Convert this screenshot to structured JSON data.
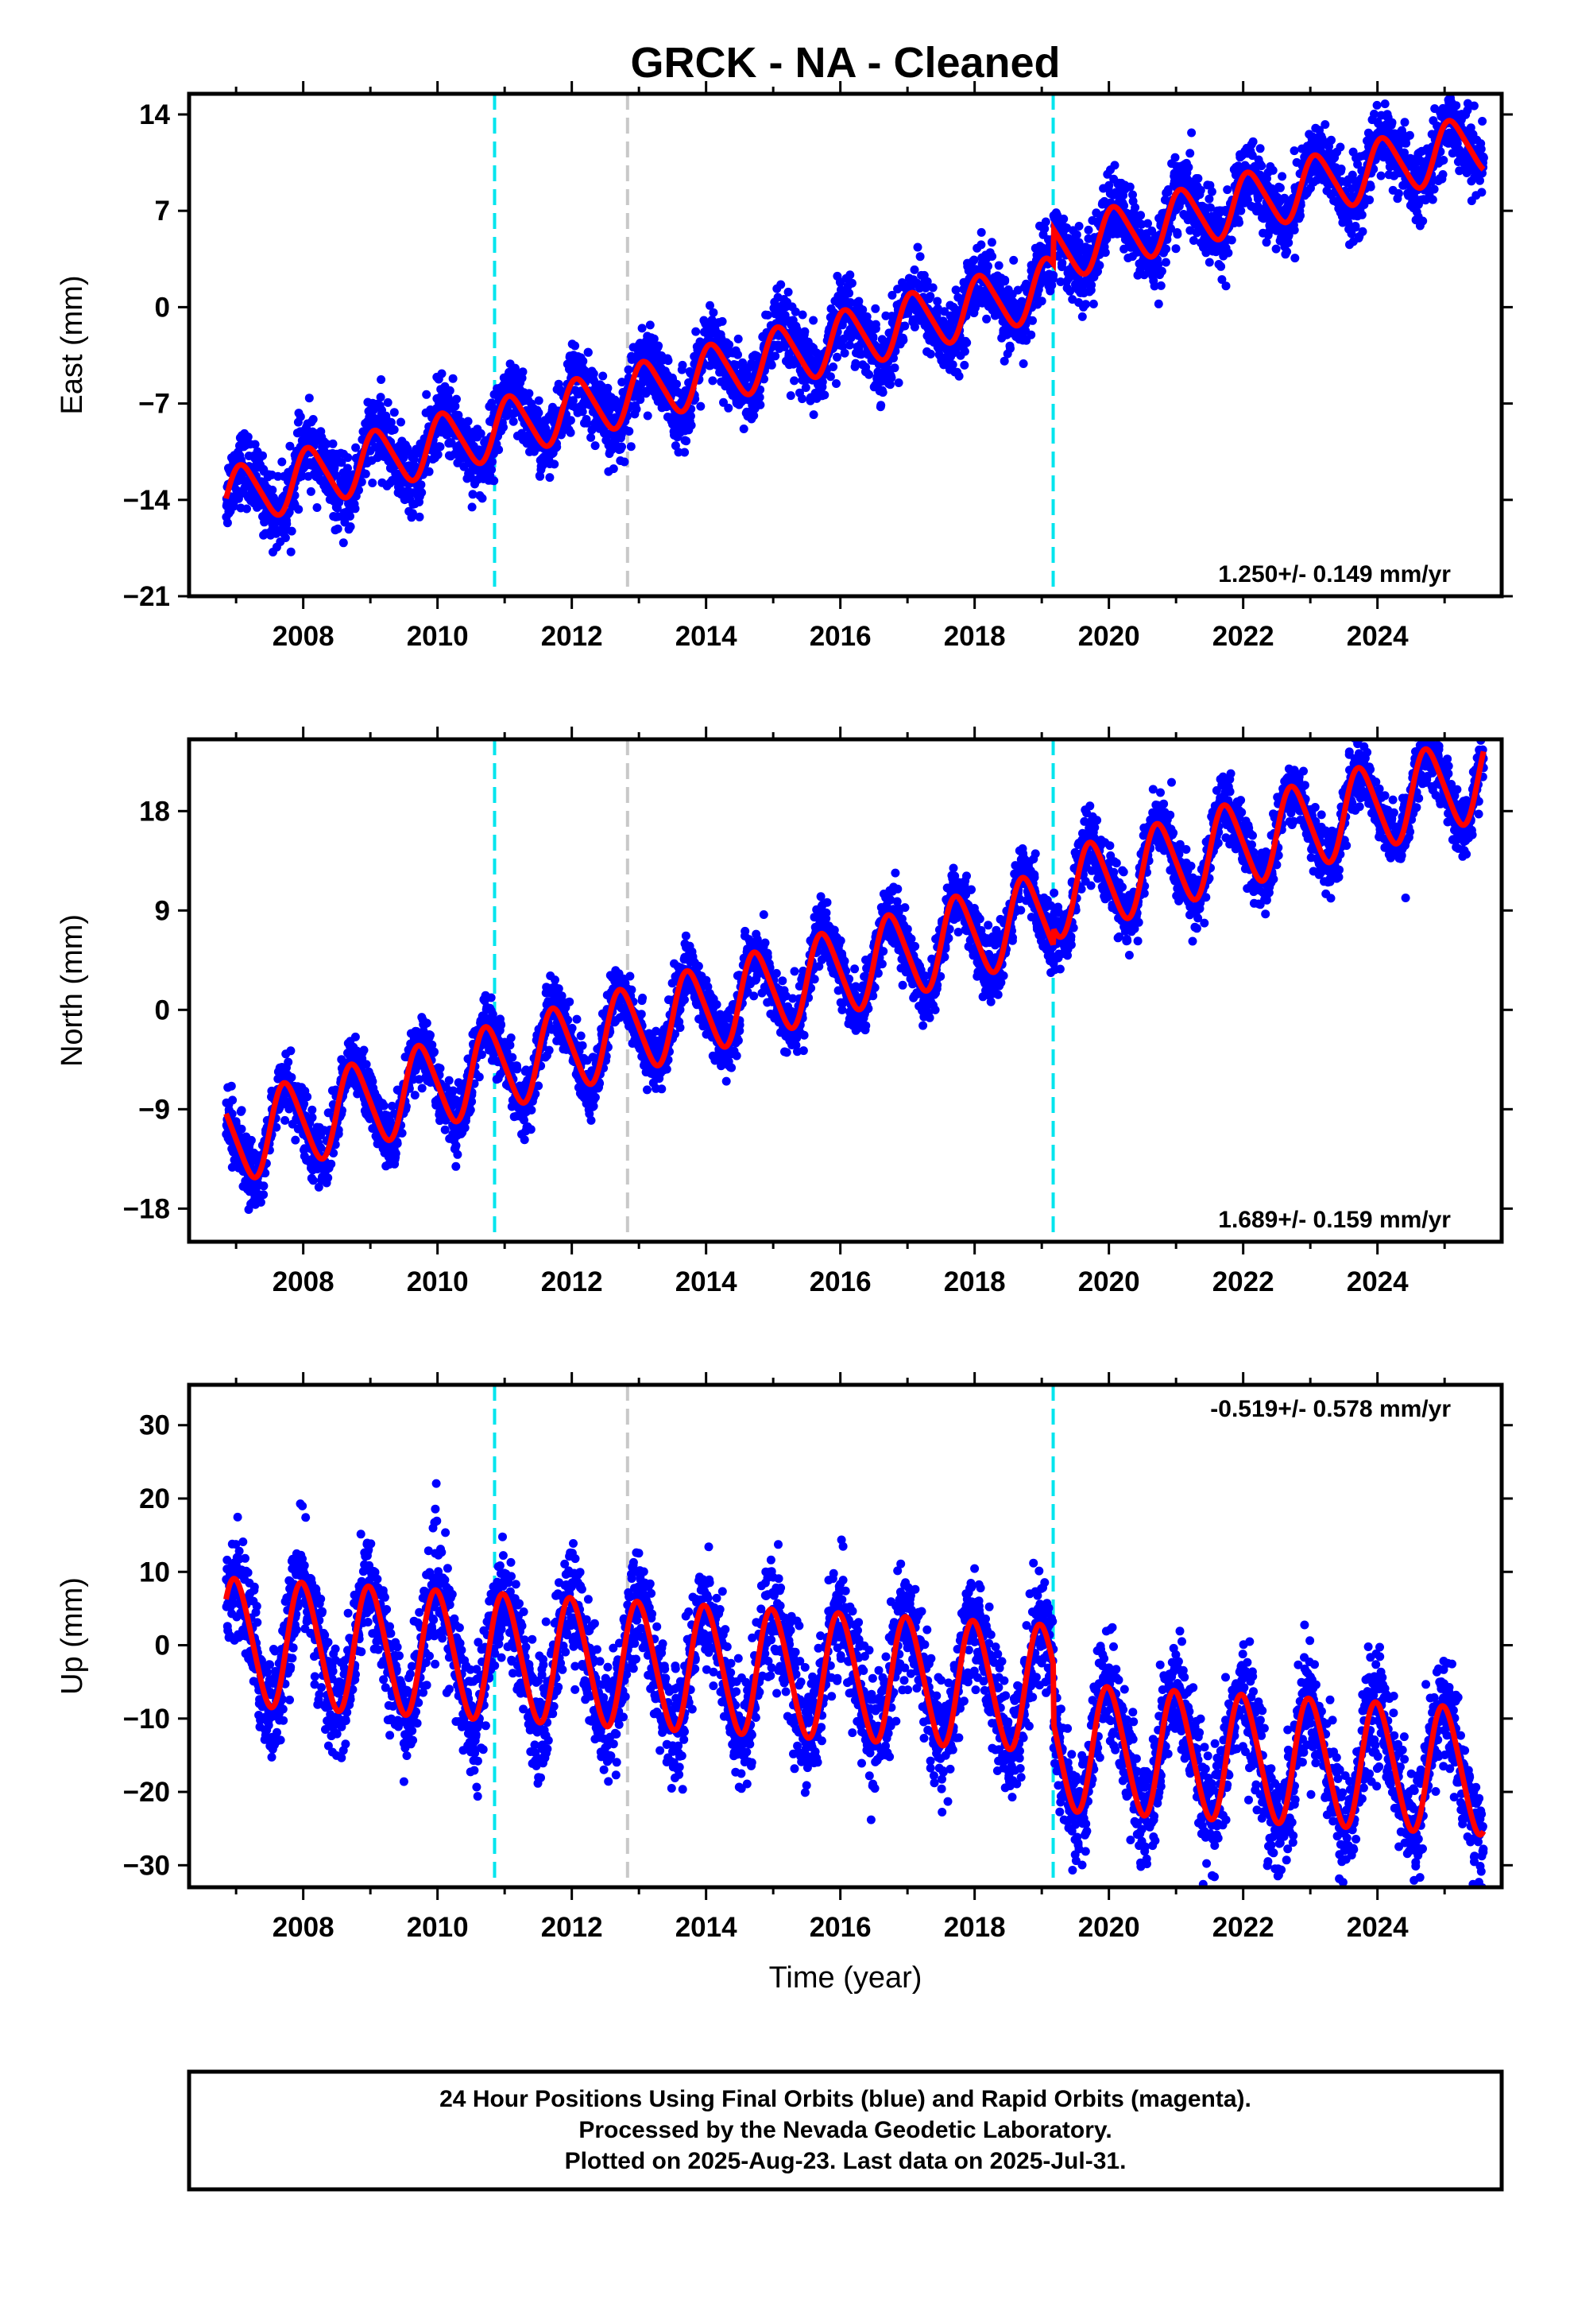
{
  "title": "GRCK  - NA - Cleaned",
  "xlabel": "Time (year)",
  "footer": [
    "24 Hour Positions Using Final Orbits (blue) and Rapid Orbits (magenta).",
    "Processed by the Nevada Geodetic Laboratory.",
    "Plotted on 2025-Aug-23. Last data on 2025-Jul-31."
  ],
  "colors": {
    "points": "#0000ff",
    "model": "#ff0000",
    "equipment_change": "#00e5ee",
    "other_event": "#c8c8c8",
    "frame": "#000000"
  },
  "chart_data": [
    {
      "type": "scatter",
      "ylabel": "East (mm)",
      "xlim": [
        2006.3,
        2025.85
      ],
      "ylim": [
        -21,
        15.5
      ],
      "yticks": [
        14,
        7,
        0,
        -7,
        -14,
        -21
      ],
      "ytick_labels": [
        "14",
        "7",
        "0",
        "−7",
        "−14",
        "−21"
      ],
      "xticks": [
        2008,
        2010,
        2012,
        2014,
        2016,
        2018,
        2020,
        2022,
        2024
      ],
      "xtick_labels": [
        "2008",
        "2010",
        "2012",
        "2014",
        "2016",
        "2018",
        "2020",
        "2022",
        "2024"
      ],
      "rate": "1.250+/- 0.149 mm/yr",
      "rate_position": "bottom-right",
      "events": [
        {
          "x": 2010.85,
          "kind": "equipment_change"
        },
        {
          "x": 2012.83,
          "kind": "other_event"
        },
        {
          "x": 2019.17,
          "kind": "equipment_change"
        }
      ],
      "model": {
        "start": 2006.85,
        "end": 2025.58,
        "offset": -13.9,
        "rate": 1.25,
        "annual_amplitude": 2.1,
        "annual_phase_year": 0.85,
        "semiannual_amplitude": 0.3,
        "steps": [
          {
            "x": 2019.17,
            "size": 2.5
          }
        ]
      },
      "scatter_noise": 1.3
    },
    {
      "type": "scatter",
      "ylabel": "North (mm)",
      "xlim": [
        2006.3,
        2025.85
      ],
      "ylim": [
        -21,
        24.5
      ],
      "yticks": [
        18,
        9,
        0,
        -9,
        -18
      ],
      "ytick_labels": [
        "18",
        "9",
        "0",
        "−9",
        "−18"
      ],
      "xticks": [
        2008,
        2010,
        2012,
        2014,
        2016,
        2018,
        2020,
        2022,
        2024
      ],
      "xtick_labels": [
        "2008",
        "2010",
        "2012",
        "2014",
        "2016",
        "2018",
        "2020",
        "2022",
        "2024"
      ],
      "rate": "1.689+/- 0.159 mm/yr",
      "rate_position": "bottom-right",
      "events": [
        {
          "x": 2010.85,
          "kind": "equipment_change"
        },
        {
          "x": 2012.83,
          "kind": "other_event"
        },
        {
          "x": 2019.17,
          "kind": "equipment_change"
        }
      ],
      "model": {
        "start": 2006.85,
        "end": 2025.58,
        "offset": -12.0,
        "rate": 1.69,
        "annual_amplitude": 3.8,
        "annual_phase_year": 0.5,
        "semiannual_amplitude": 0.5,
        "steps": [
          {
            "x": 2019.17,
            "size": 1.5
          }
        ]
      },
      "scatter_noise": 1.4
    },
    {
      "type": "scatter",
      "ylabel": "Up (mm)",
      "xlim": [
        2006.3,
        2025.85
      ],
      "ylim": [
        -33,
        35.5
      ],
      "yticks": [
        30,
        20,
        10,
        0,
        -10,
        -20,
        -30
      ],
      "ytick_labels": [
        "30",
        "20",
        "10",
        "0",
        "−10",
        "−20",
        "−30"
      ],
      "xticks": [
        2008,
        2010,
        2012,
        2014,
        2016,
        2018,
        2020,
        2022,
        2024
      ],
      "xtick_labels": [
        "2008",
        "2010",
        "2012",
        "2014",
        "2016",
        "2018",
        "2020",
        "2022",
        "2024"
      ],
      "rate": "-0.519+/- 0.578 mm/yr",
      "rate_position": "top-right",
      "events": [
        {
          "x": 2010.85,
          "kind": "equipment_change"
        },
        {
          "x": 2012.83,
          "kind": "other_event"
        },
        {
          "x": 2019.17,
          "kind": "equipment_change"
        }
      ],
      "model": {
        "start": 2006.85,
        "end": 2025.58,
        "offset": 0.5,
        "rate": -0.52,
        "annual_amplitude": 8.5,
        "annual_phase_year": 0.75,
        "semiannual_amplitude": 0.8,
        "steps": [
          {
            "x": 2019.17,
            "size": -8.0
          }
        ]
      },
      "scatter_noise": 3.8
    }
  ]
}
